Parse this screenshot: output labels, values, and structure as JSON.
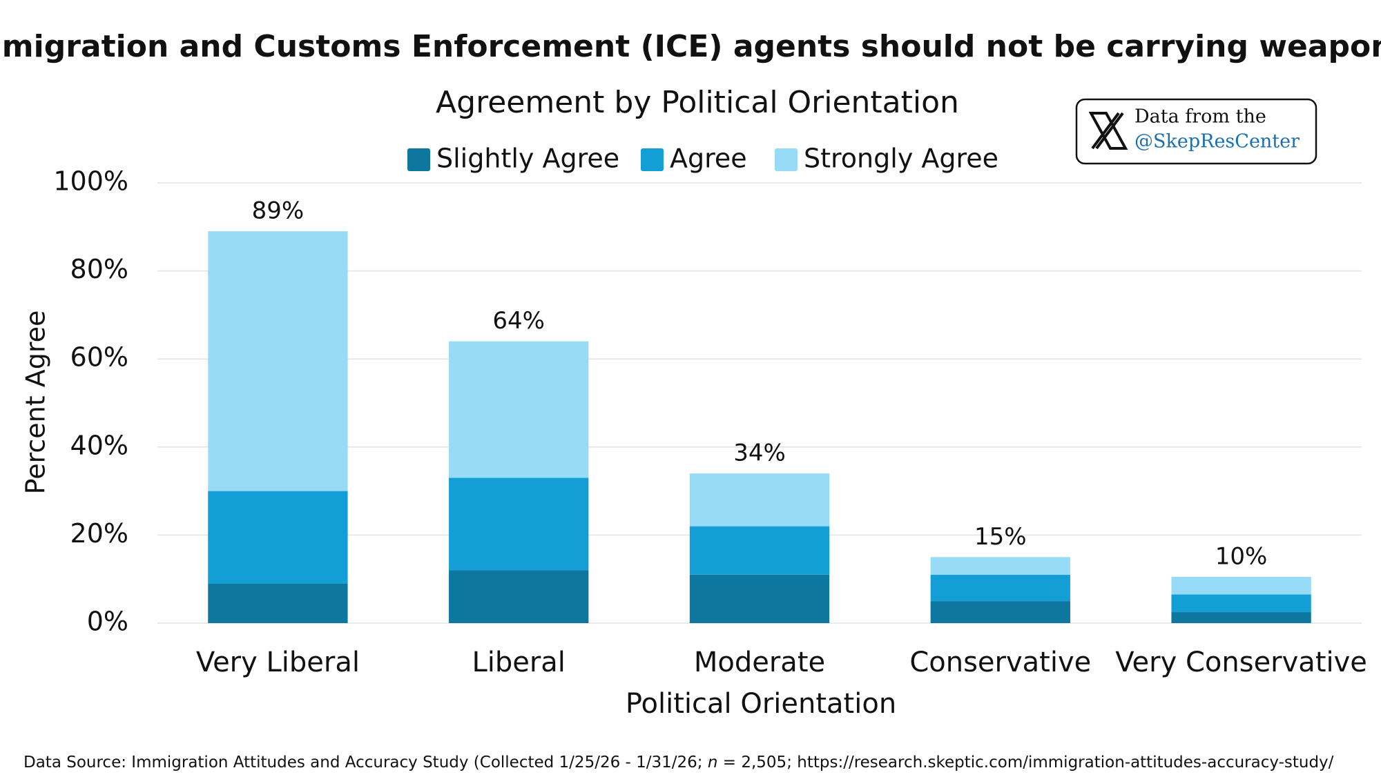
{
  "chart_data": {
    "type": "stacked_bar",
    "title": "“Immigration and Customs Enforcement (ICE) agents should not be carrying weapons.”",
    "subtitle": "Agreement by Political Orientation",
    "x_label": "Political Orientation",
    "y_label": "Percent Agree",
    "categories": [
      "Very Liberal",
      "Liberal",
      "Moderate",
      "Conservative",
      "Very Conservative"
    ],
    "series": [
      {
        "name": "Slightly Agree",
        "color": "#0e77a0",
        "values": [
          9,
          12,
          11,
          5,
          2.5
        ]
      },
      {
        "name": "Agree",
        "color": "#139fd6",
        "values": [
          21,
          21,
          11,
          6,
          4
        ]
      },
      {
        "name": "Strongly Agree",
        "color": "#97dbf6",
        "values": [
          59,
          31,
          12,
          4,
          4
        ]
      }
    ],
    "totals": [
      89,
      64,
      34,
      15,
      10
    ],
    "total_labels": [
      "89%",
      "64%",
      "34%",
      "15%",
      "10%"
    ],
    "ylim": [
      0,
      100
    ],
    "yticks": [
      {
        "value": 0,
        "label": "0%"
      },
      {
        "value": 20,
        "label": "20%"
      },
      {
        "value": 40,
        "label": "40%"
      },
      {
        "value": 60,
        "label": "60%"
      },
      {
        "value": 80,
        "label": "80%"
      },
      {
        "value": 100,
        "label": "100%"
      }
    ],
    "grid": true,
    "legend": "top",
    "badge": [
      "Data from the",
      "@SkepResCenter"
    ],
    "source": [
      "Data Source: Immigration Attitudes and Accuracy Study (Collected 1/25/26 - 1/31/26; ",
      "n",
      " = 2,505; https://research.skeptic.com/immigration-attitudes-accuracy-study/"
    ]
  }
}
